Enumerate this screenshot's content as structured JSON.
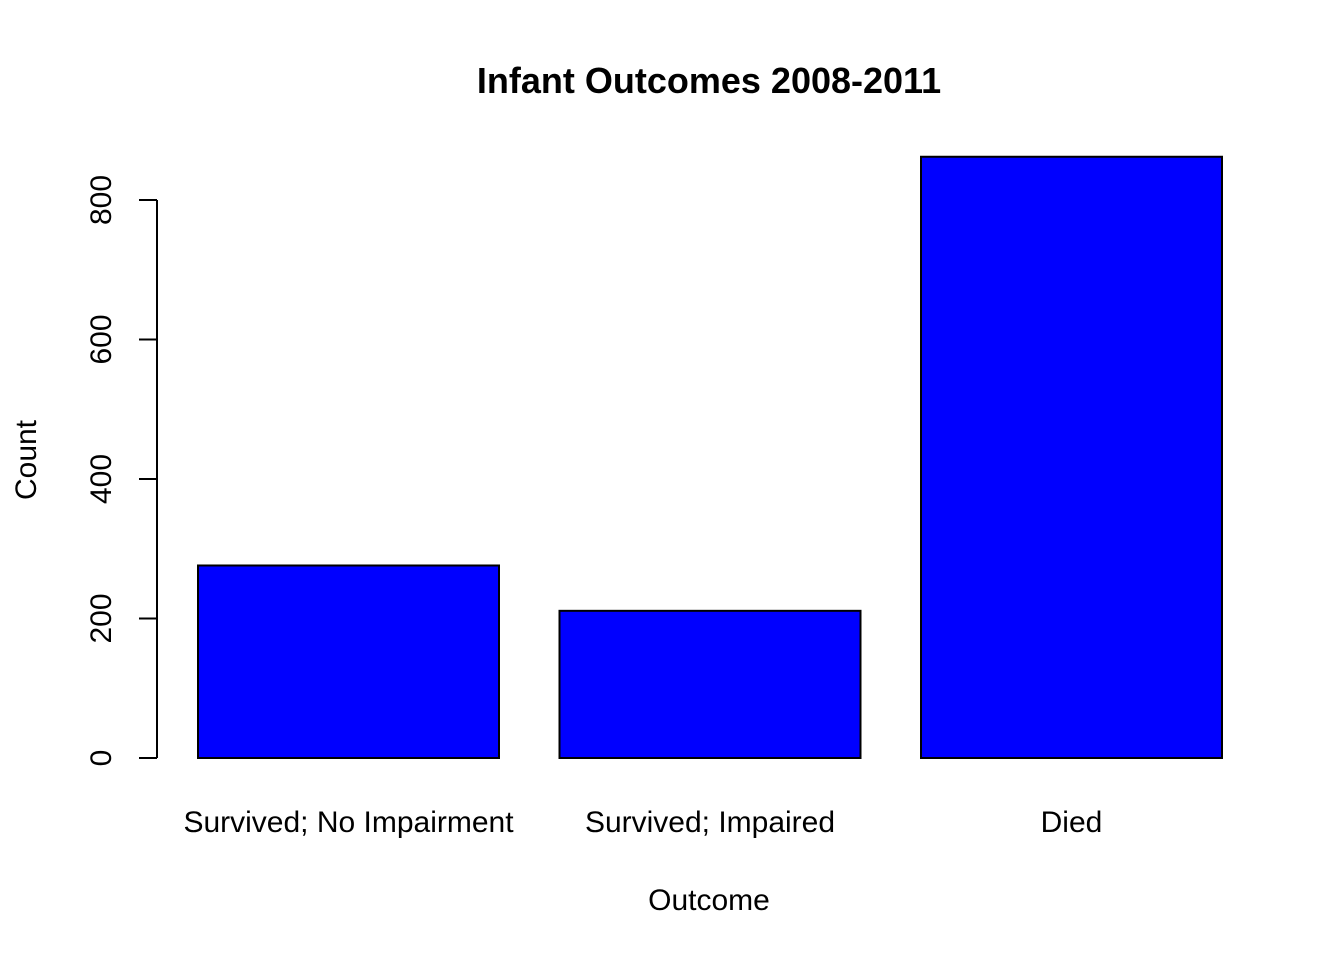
{
  "chart_data": {
    "type": "bar",
    "title": "Infant Outcomes 2008-2011",
    "xlabel": "Outcome",
    "ylabel": "Count",
    "categories": [
      "Survived; No Impairment",
      "Survived; Impaired",
      "Died"
    ],
    "values": [
      276,
      211,
      862
    ],
    "ylim": [
      0,
      862
    ],
    "yticks": [
      0,
      200,
      400,
      600,
      800
    ],
    "ytick_labels": [
      "0",
      "200",
      "400",
      "600",
      "800"
    ],
    "bar_color": "#0000ff",
    "bar_border_color": "#000000",
    "grid": false,
    "legend": "none"
  }
}
